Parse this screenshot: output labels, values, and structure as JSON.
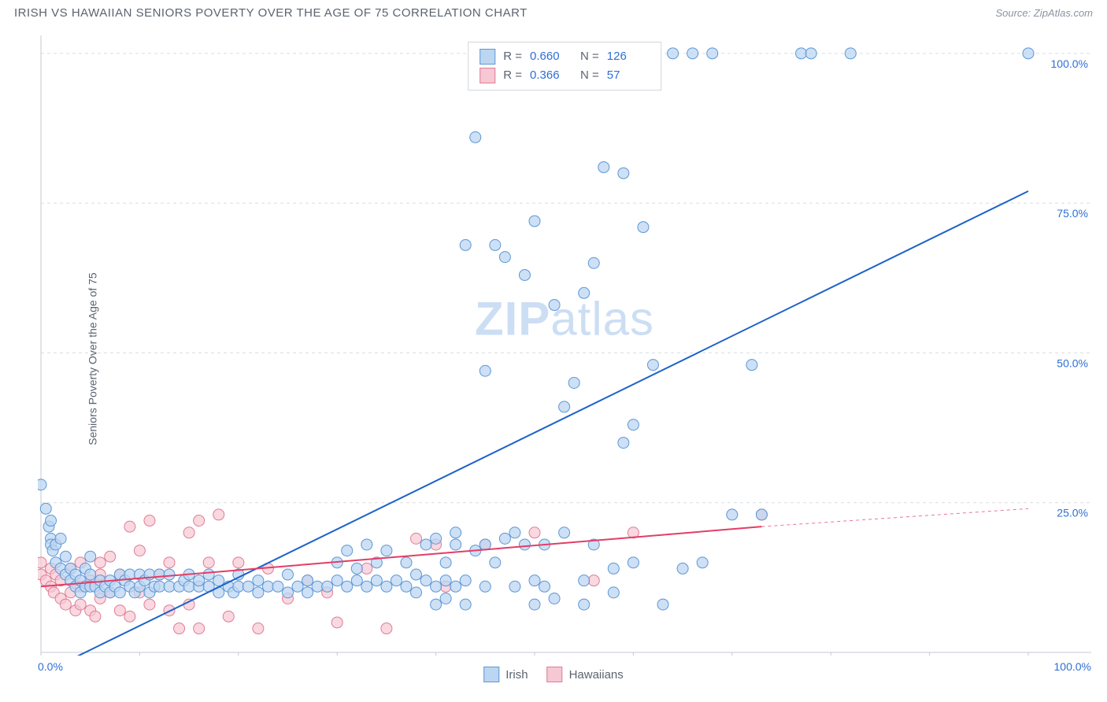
{
  "header": {
    "title": "IRISH VS HAWAIIAN SENIORS POVERTY OVER THE AGE OF 75 CORRELATION CHART",
    "source": "Source: ZipAtlas.com"
  },
  "yaxis_label": "Seniors Poverty Over the Age of 75",
  "watermark": "ZIPatlas",
  "chart": {
    "type": "scatter",
    "background_color": "#ffffff",
    "grid_color": "#d8dde2",
    "grid_dash": "4,4",
    "axis_color": "#c4cad0",
    "xlim": [
      0,
      100
    ],
    "ylim": [
      0,
      103
    ],
    "xtick_major": [
      0,
      100
    ],
    "xtick_minor_step": 10,
    "ytick_major": [
      25,
      50,
      75,
      100
    ],
    "tick_label_color": "#2d6fd6",
    "tick_label_fontsize": 14,
    "x_tick_labels": {
      "0": "0.0%",
      "100": "100.0%"
    },
    "y_tick_labels": {
      "25": "25.0%",
      "50": "50.0%",
      "75": "75.0%",
      "100": "100.0%"
    }
  },
  "stats": {
    "series1": {
      "R": "0.660",
      "N": "126"
    },
    "series2": {
      "R": "0.366",
      "N": "57"
    }
  },
  "series": [
    {
      "name": "Irish",
      "marker_fill": "#bcd6f2",
      "marker_stroke": "#5d97d6",
      "marker_r": 7,
      "marker_opacity": 0.75,
      "line_color": "#1d62c9",
      "line_width": 2,
      "trend": {
        "x1": 2,
        "y1": -2,
        "x2": 100,
        "y2": 77,
        "extrap_from": 100
      },
      "points": [
        [
          0,
          28
        ],
        [
          0.5,
          24
        ],
        [
          0.8,
          21
        ],
        [
          1,
          22
        ],
        [
          1,
          19
        ],
        [
          1,
          18
        ],
        [
          1.2,
          17
        ],
        [
          1.5,
          15
        ],
        [
          1.5,
          18
        ],
        [
          2,
          14
        ],
        [
          2,
          19
        ],
        [
          2.5,
          13
        ],
        [
          2.5,
          16
        ],
        [
          3,
          12
        ],
        [
          3,
          14
        ],
        [
          3.5,
          11
        ],
        [
          3.5,
          13
        ],
        [
          4,
          10
        ],
        [
          4,
          12
        ],
        [
          4.5,
          11
        ],
        [
          4.5,
          14
        ],
        [
          5,
          11
        ],
        [
          5,
          13
        ],
        [
          5,
          16
        ],
        [
          5.5,
          11
        ],
        [
          6,
          10
        ],
        [
          6,
          12
        ],
        [
          6.5,
          11
        ],
        [
          7,
          10
        ],
        [
          7,
          12
        ],
        [
          7.5,
          11
        ],
        [
          8,
          10
        ],
        [
          8,
          13
        ],
        [
          8.5,
          12
        ],
        [
          9,
          11
        ],
        [
          9,
          13
        ],
        [
          9.5,
          10
        ],
        [
          10,
          11
        ],
        [
          10,
          13
        ],
        [
          10.5,
          12
        ],
        [
          11,
          10
        ],
        [
          11,
          13
        ],
        [
          11.5,
          11
        ],
        [
          12,
          11
        ],
        [
          12,
          13
        ],
        [
          13,
          11
        ],
        [
          13,
          13
        ],
        [
          14,
          11
        ],
        [
          14.5,
          12
        ],
        [
          15,
          11
        ],
        [
          15,
          13
        ],
        [
          16,
          11
        ],
        [
          16,
          12
        ],
        [
          17,
          11
        ],
        [
          17,
          13
        ],
        [
          18,
          10
        ],
        [
          18,
          12
        ],
        [
          19,
          11
        ],
        [
          19.5,
          10
        ],
        [
          20,
          11
        ],
        [
          20,
          13
        ],
        [
          21,
          11
        ],
        [
          22,
          10
        ],
        [
          22,
          12
        ],
        [
          23,
          11
        ],
        [
          24,
          11
        ],
        [
          25,
          10
        ],
        [
          25,
          13
        ],
        [
          26,
          11
        ],
        [
          27,
          10
        ],
        [
          27,
          12
        ],
        [
          28,
          11
        ],
        [
          29,
          11
        ],
        [
          30,
          12
        ],
        [
          30,
          15
        ],
        [
          31,
          11
        ],
        [
          31,
          17
        ],
        [
          32,
          12
        ],
        [
          32,
          14
        ],
        [
          33,
          11
        ],
        [
          33,
          18
        ],
        [
          34,
          12
        ],
        [
          34,
          15
        ],
        [
          35,
          11
        ],
        [
          35,
          17
        ],
        [
          36,
          12
        ],
        [
          37,
          11
        ],
        [
          37,
          15
        ],
        [
          38,
          13
        ],
        [
          38,
          10
        ],
        [
          39,
          12
        ],
        [
          39,
          18
        ],
        [
          40,
          11
        ],
        [
          40,
          19
        ],
        [
          40,
          8
        ],
        [
          41,
          15
        ],
        [
          41,
          12
        ],
        [
          41,
          9
        ],
        [
          42,
          18
        ],
        [
          42,
          11
        ],
        [
          42,
          20
        ],
        [
          43,
          12
        ],
        [
          43,
          68
        ],
        [
          43,
          8
        ],
        [
          44,
          17
        ],
        [
          44,
          86
        ],
        [
          45,
          11
        ],
        [
          45,
          18
        ],
        [
          45,
          47
        ],
        [
          46,
          15
        ],
        [
          46,
          68
        ],
        [
          47,
          19
        ],
        [
          47,
          66
        ],
        [
          48,
          11
        ],
        [
          48,
          20
        ],
        [
          49,
          18
        ],
        [
          49,
          63
        ],
        [
          50,
          72
        ],
        [
          50,
          12
        ],
        [
          50,
          8
        ],
        [
          51,
          11
        ],
        [
          51,
          18
        ],
        [
          52,
          58
        ],
        [
          52,
          9
        ],
        [
          53,
          41
        ],
        [
          53,
          20
        ],
        [
          54,
          45
        ],
        [
          55,
          60
        ],
        [
          55,
          12
        ],
        [
          55,
          8
        ],
        [
          56,
          65
        ],
        [
          56,
          18
        ],
        [
          57,
          81
        ],
        [
          58,
          10
        ],
        [
          58,
          14
        ],
        [
          59,
          80
        ],
        [
          59,
          35
        ],
        [
          60,
          15
        ],
        [
          60,
          38
        ],
        [
          61,
          71
        ],
        [
          62,
          48
        ],
        [
          63,
          8
        ],
        [
          64,
          100
        ],
        [
          65,
          14
        ],
        [
          66,
          100
        ],
        [
          67,
          15
        ],
        [
          68,
          100
        ],
        [
          70,
          23
        ],
        [
          72,
          48
        ],
        [
          73,
          23
        ],
        [
          77,
          100
        ],
        [
          78,
          100
        ],
        [
          82,
          100
        ],
        [
          100,
          100
        ]
      ]
    },
    {
      "name": "Hawaiians",
      "marker_fill": "#f6c8d3",
      "marker_stroke": "#e07c96",
      "marker_r": 7,
      "marker_opacity": 0.7,
      "line_color": "#e33d66",
      "line_width": 2,
      "trend": {
        "x1": 0,
        "y1": 11,
        "x2": 73,
        "y2": 21,
        "extrap_from": 73,
        "extrap_x2": 100,
        "extrap_y2": 24
      },
      "points": [
        [
          0,
          15
        ],
        [
          0,
          13
        ],
        [
          0.5,
          12
        ],
        [
          1,
          11
        ],
        [
          1,
          14
        ],
        [
          1.3,
          10
        ],
        [
          1.5,
          13
        ],
        [
          2,
          9
        ],
        [
          2,
          12
        ],
        [
          2.5,
          8
        ],
        [
          3,
          14
        ],
        [
          3,
          10
        ],
        [
          3.5,
          7
        ],
        [
          4,
          11
        ],
        [
          4,
          15
        ],
        [
          4,
          8
        ],
        [
          5,
          12
        ],
        [
          5,
          7
        ],
        [
          5.5,
          6
        ],
        [
          6,
          13
        ],
        [
          6,
          15
        ],
        [
          6,
          9
        ],
        [
          7,
          10
        ],
        [
          7,
          16
        ],
        [
          8,
          7
        ],
        [
          8,
          13
        ],
        [
          9,
          21
        ],
        [
          9,
          6
        ],
        [
          10,
          17
        ],
        [
          10,
          10
        ],
        [
          11,
          22
        ],
        [
          11,
          8
        ],
        [
          12,
          13
        ],
        [
          13,
          15
        ],
        [
          13,
          7
        ],
        [
          14,
          4
        ],
        [
          15,
          20
        ],
        [
          15,
          8
        ],
        [
          16,
          22
        ],
        [
          16,
          4
        ],
        [
          17,
          15
        ],
        [
          18,
          23
        ],
        [
          19,
          6
        ],
        [
          20,
          15
        ],
        [
          22,
          4
        ],
        [
          23,
          14
        ],
        [
          25,
          9
        ],
        [
          27,
          12
        ],
        [
          29,
          10
        ],
        [
          30,
          5
        ],
        [
          33,
          14
        ],
        [
          35,
          4
        ],
        [
          38,
          19
        ],
        [
          40,
          18
        ],
        [
          41,
          11
        ],
        [
          45,
          18
        ],
        [
          50,
          20
        ],
        [
          56,
          12
        ],
        [
          60,
          20
        ],
        [
          73,
          23
        ]
      ]
    }
  ],
  "legend": {
    "series1_label": "Irish",
    "series2_label": "Hawaiians"
  }
}
